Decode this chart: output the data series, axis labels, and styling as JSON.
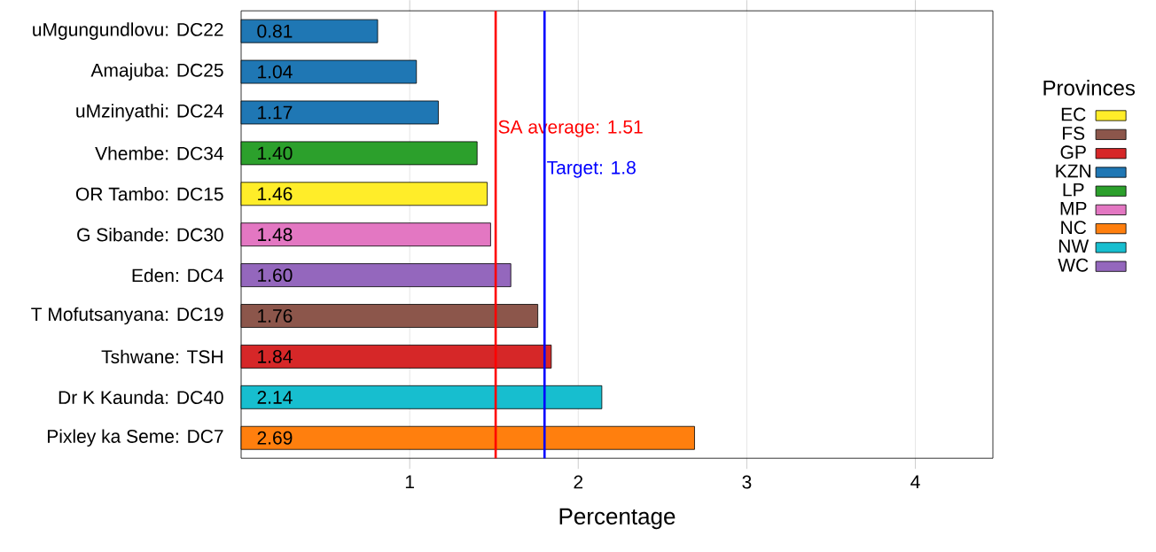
{
  "chart_data": {
    "type": "bar",
    "orientation": "horizontal",
    "xlabel": "Percentage",
    "legend_title": "Provinces",
    "categories": [
      "uMgungundlovu: DC22",
      "Amajuba: DC25",
      "uMzinyathi: DC24",
      "Vhembe: DC34",
      "OR Tambo: DC15",
      "G Sibande: DC30",
      "Eden: DC4",
      "T Mofutsanyana: DC19",
      "Tshwane: TSH",
      "Dr K Kaunda: DC40",
      "Pixley ka Seme: DC7"
    ],
    "series": [
      {
        "name": "EC",
        "color": "#ffed29",
        "values": [
          null,
          null,
          null,
          null,
          1.46,
          null,
          null,
          null,
          null,
          null,
          null
        ],
        "value_labels": [
          null,
          null,
          null,
          null,
          "1.46",
          null,
          null,
          null,
          null,
          null,
          null
        ]
      },
      {
        "name": "FS",
        "color": "#8c564b",
        "values": [
          null,
          null,
          null,
          null,
          null,
          null,
          null,
          1.76,
          null,
          null,
          null
        ],
        "value_labels": [
          null,
          null,
          null,
          null,
          null,
          null,
          null,
          "1.76",
          null,
          null,
          null
        ]
      },
      {
        "name": "GP",
        "color": "#d62728",
        "values": [
          null,
          null,
          null,
          null,
          null,
          null,
          null,
          null,
          1.84,
          null,
          null
        ],
        "value_labels": [
          null,
          null,
          null,
          null,
          null,
          null,
          null,
          null,
          "1.84",
          null,
          null
        ]
      },
      {
        "name": "KZN",
        "color": "#1f77b4",
        "values": [
          0.81,
          1.04,
          1.17,
          null,
          null,
          null,
          null,
          null,
          null,
          null,
          null
        ],
        "value_labels": [
          "0.81",
          "1.04",
          "1.17",
          null,
          null,
          null,
          null,
          null,
          null,
          null,
          null
        ]
      },
      {
        "name": "LP",
        "color": "#2ca02c",
        "values": [
          null,
          null,
          null,
          1.4,
          null,
          null,
          null,
          null,
          null,
          null,
          null
        ],
        "value_labels": [
          null,
          null,
          null,
          "1.40",
          null,
          null,
          null,
          null,
          null,
          null,
          null
        ]
      },
      {
        "name": "MP",
        "color": "#e377c2",
        "values": [
          null,
          null,
          null,
          null,
          null,
          1.48,
          null,
          null,
          null,
          null,
          null
        ],
        "value_labels": [
          null,
          null,
          null,
          null,
          null,
          "1.48",
          null,
          null,
          null,
          null,
          null
        ]
      },
      {
        "name": "NC",
        "color": "#ff7f0e",
        "values": [
          null,
          null,
          null,
          null,
          null,
          null,
          null,
          null,
          null,
          null,
          2.69
        ],
        "value_labels": [
          null,
          null,
          null,
          null,
          null,
          null,
          null,
          null,
          null,
          null,
          "2.69"
        ]
      },
      {
        "name": "NW",
        "color": "#17becf",
        "values": [
          null,
          null,
          null,
          null,
          null,
          null,
          null,
          null,
          null,
          2.14,
          null
        ],
        "value_labels": [
          null,
          null,
          null,
          null,
          null,
          null,
          null,
          null,
          null,
          "2.14",
          null
        ]
      },
      {
        "name": "WC",
        "color": "#9467bd",
        "values": [
          null,
          null,
          null,
          null,
          null,
          null,
          1.6,
          null,
          null,
          null,
          null
        ],
        "value_labels": [
          null,
          null,
          null,
          null,
          null,
          null,
          "1.60",
          null,
          null,
          null,
          null
        ]
      }
    ],
    "xlim": [
      0,
      4.46
    ],
    "xticks": [
      1,
      2,
      3,
      4
    ],
    "ref_lines": [
      {
        "axis": "x",
        "value": 1.51,
        "label": "SA average: 1.51",
        "color": "#ff0000"
      },
      {
        "axis": "x",
        "value": 1.8,
        "label": "Target:  1.8",
        "color": "#0000ff"
      }
    ],
    "grid": "x",
    "legend": "right"
  }
}
